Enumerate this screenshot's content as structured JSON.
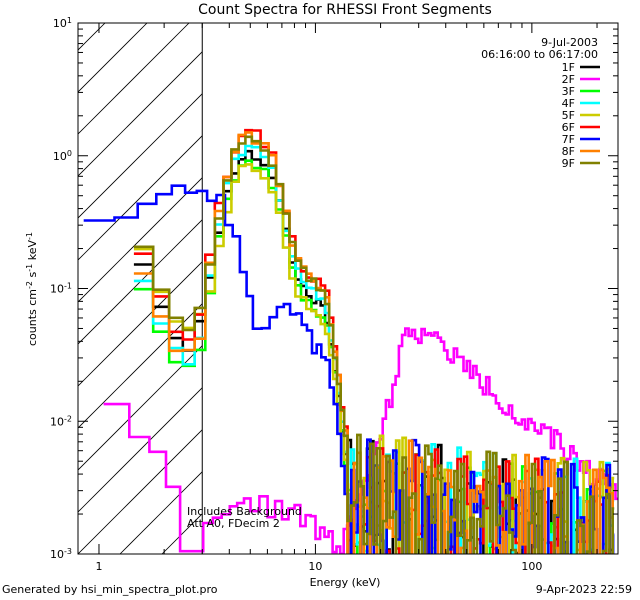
{
  "chart_data": {
    "type": "line",
    "title": "Count Spectra for RHESSI Front Segments",
    "xlabel": "Energy (keV)",
    "ylabel": "counts cm",
    "ylabel_sup1": "-2",
    "ylabel_mid": " s",
    "ylabel_sup2": "-1",
    "ylabel_end": " keV",
    "ylabel_sup3": "-1",
    "xscale": "log",
    "yscale": "log",
    "xlim": [
      0.8,
      250
    ],
    "ylim": [
      0.001,
      10
    ],
    "x_ticks": [
      {
        "value": 1,
        "label": "1"
      },
      {
        "value": 10,
        "label": "10"
      },
      {
        "value": 100,
        "label": "100"
      }
    ],
    "y_ticks": [
      {
        "value": 0.001,
        "base": "10",
        "exp": "-3"
      },
      {
        "value": 0.01,
        "base": "10",
        "exp": "-2"
      },
      {
        "value": 0.1,
        "base": "10",
        "exp": "-1"
      },
      {
        "value": 1,
        "base": "10",
        "exp": "0"
      },
      {
        "value": 10,
        "base": "10",
        "exp": "1"
      }
    ],
    "date": "9-Jul-2003",
    "time_range": "06:16:00 to 06:17:00",
    "hatched_below_kev": 3,
    "annotations": [
      "Includes Background",
      "Att A0, FDecim 2"
    ],
    "series": [
      {
        "name": "1F",
        "color": "#000000",
        "scale": 1.0,
        "low_scale": 1.0,
        "seed": 11
      },
      {
        "name": "2F",
        "color": "#ff00ff",
        "special": "2F",
        "seed": 22
      },
      {
        "name": "3F",
        "color": "#00ff00",
        "scale": 0.85,
        "low_scale": 0.65,
        "seed": 33
      },
      {
        "name": "4F",
        "color": "#00ffff",
        "scale": 1.1,
        "low_scale": 0.75,
        "seed": 44
      },
      {
        "name": "5F",
        "color": "#cccc00",
        "scale": 0.8,
        "low_scale": 1.3,
        "seed": 55
      },
      {
        "name": "6F",
        "color": "#ff0000",
        "scale": 1.45,
        "low_scale": 1.2,
        "seed": 66
      },
      {
        "name": "7F",
        "color": "#0000ff",
        "special": "7F",
        "seed": 77
      },
      {
        "name": "8F",
        "color": "#ff8000",
        "scale": 1.4,
        "low_scale": 0.85,
        "seed": 88
      },
      {
        "name": "9F",
        "color": "#808000",
        "scale": 1.3,
        "low_scale": 1.35,
        "seed": 99
      }
    ],
    "base_spectrum": [
      [
        1.5,
        0.16
      ],
      [
        1.7,
        0.09
      ],
      [
        2.0,
        0.05
      ],
      [
        2.3,
        0.035
      ],
      [
        2.6,
        0.04
      ],
      [
        3.0,
        0.08
      ],
      [
        3.3,
        0.22
      ],
      [
        3.6,
        0.4
      ],
      [
        4.0,
        0.75
      ],
      [
        4.5,
        1.05
      ],
      [
        5.0,
        1.0
      ],
      [
        5.5,
        0.9
      ],
      [
        6.0,
        0.75
      ],
      [
        6.5,
        0.5
      ],
      [
        7.0,
        0.3
      ],
      [
        7.5,
        0.17
      ],
      [
        8.0,
        0.12
      ],
      [
        9.0,
        0.09
      ],
      [
        10.0,
        0.08
      ],
      [
        11.0,
        0.065
      ],
      [
        12.0,
        0.028
      ],
      [
        13.0,
        0.01
      ],
      [
        14.0,
        0.004
      ]
    ],
    "spectrum_2F": [
      [
        1.05,
        0.015
      ],
      [
        1.5,
        0.007
      ],
      [
        2.0,
        0.0035
      ],
      [
        2.3,
        0.002
      ],
      [
        2.6,
        0.0011
      ],
      [
        3.0,
        0.0015
      ],
      [
        4.0,
        0.002
      ],
      [
        5.0,
        0.0025
      ],
      [
        7.0,
        0.0022
      ],
      [
        9.0,
        0.0018
      ],
      [
        11.0,
        0.0013
      ],
      [
        13.0,
        0.0011
      ],
      [
        14.0,
        0.0018
      ],
      [
        16.0,
        0.0025
      ],
      [
        19.0,
        0.006
      ],
      [
        22.0,
        0.016
      ],
      [
        25.0,
        0.04
      ],
      [
        28.0,
        0.052
      ],
      [
        32.0,
        0.045
      ],
      [
        40.0,
        0.035
      ],
      [
        50.0,
        0.025
      ],
      [
        60.0,
        0.019
      ],
      [
        70.0,
        0.015
      ],
      [
        80.0,
        0.012
      ],
      [
        95.0,
        0.009
      ],
      [
        110.0,
        0.008
      ],
      [
        130.0,
        0.007
      ],
      [
        160.0,
        0.005
      ],
      [
        200.0,
        0.0038
      ],
      [
        245.0,
        0.0032
      ]
    ],
    "spectrum_7F": [
      [
        1.0,
        0.35
      ],
      [
        1.3,
        0.38
      ],
      [
        1.6,
        0.45
      ],
      [
        2.0,
        0.55
      ],
      [
        2.5,
        0.58
      ],
      [
        3.0,
        0.52
      ],
      [
        3.5,
        0.48
      ],
      [
        4.0,
        0.3
      ],
      [
        4.5,
        0.13
      ],
      [
        5.0,
        0.06
      ],
      [
        5.5,
        0.045
      ],
      [
        6.0,
        0.06
      ],
      [
        7.0,
        0.08
      ],
      [
        8.0,
        0.06
      ],
      [
        9.0,
        0.045
      ],
      [
        10.0,
        0.035
      ],
      [
        11.0,
        0.035
      ],
      [
        12.0,
        0.015
      ],
      [
        13.0,
        0.005
      ],
      [
        14.0,
        0.002
      ]
    ],
    "noise_floor": {
      "from_kev": 14,
      "to_kev": 240,
      "level_at_14": 0.003,
      "level_at_240": 0.0017
    }
  }
}
